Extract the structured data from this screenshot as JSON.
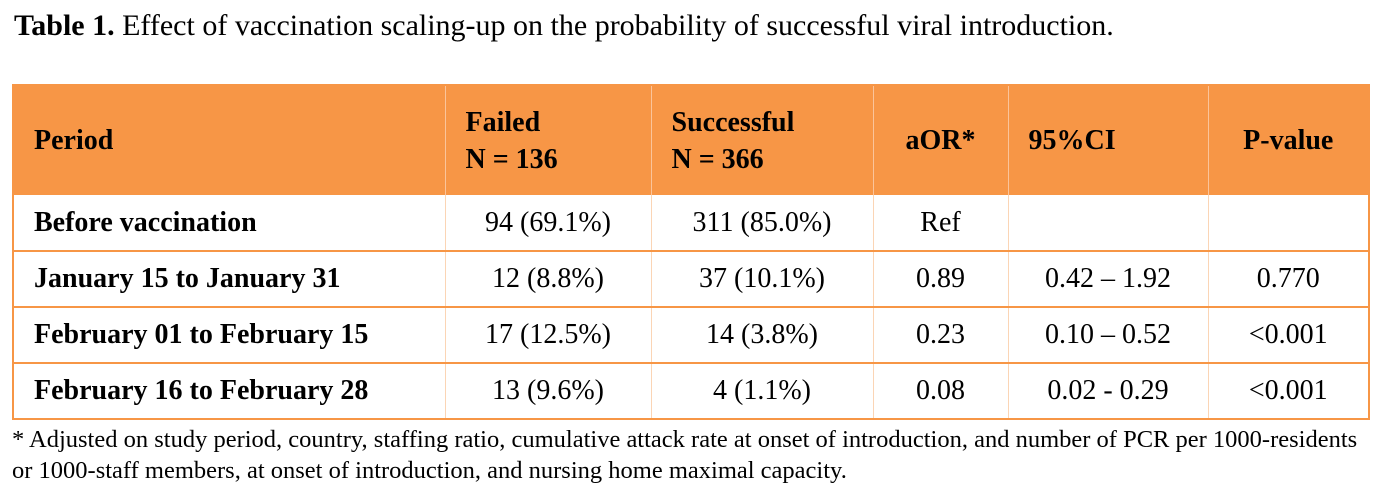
{
  "caption": {
    "label": "Table 1.",
    "text": " Effect of vaccination scaling-up on the probability of successful viral introduction."
  },
  "table": {
    "headers": [
      {
        "line1": "Period",
        "line2": ""
      },
      {
        "line1": "Failed",
        "line2": "N = 136"
      },
      {
        "line1": "Successful",
        "line2": "N = 366"
      },
      {
        "line1": "aOR*",
        "line2": ""
      },
      {
        "line1": "95%CI",
        "line2": ""
      },
      {
        "line1": "P-value",
        "line2": ""
      }
    ],
    "rows": [
      {
        "period": "Before vaccination",
        "failed": "94 (69.1%)",
        "successful": "311 (85.0%)",
        "aor": "Ref",
        "ci": "",
        "p": ""
      },
      {
        "period": "January 15 to January 31",
        "failed": "12 (8.8%)",
        "successful": "37 (10.1%)",
        "aor": "0.89",
        "ci": "0.42 – 1.92",
        "p": "0.770"
      },
      {
        "period": "February 01 to February 15",
        "failed": "17 (12.5%)",
        "successful": "14 (3.8%)",
        "aor": "0.23",
        "ci": "0.10 – 0.52",
        "p": "<0.001"
      },
      {
        "period": "February 16 to February 28",
        "failed": "13 (9.6%)",
        "successful": "4 (1.1%)",
        "aor": "0.08",
        "ci": "0.02 - 0.29",
        "p": "<0.001"
      }
    ]
  },
  "footnote": "* Adjusted on study period, country, staffing ratio, cumulative attack rate at onset of introduction, and number of PCR per 1000-residents or 1000-staff members, at onset of introduction, and nursing home maximal capacity.",
  "colors": {
    "header_background": "#f79646",
    "border": "#f79646"
  }
}
